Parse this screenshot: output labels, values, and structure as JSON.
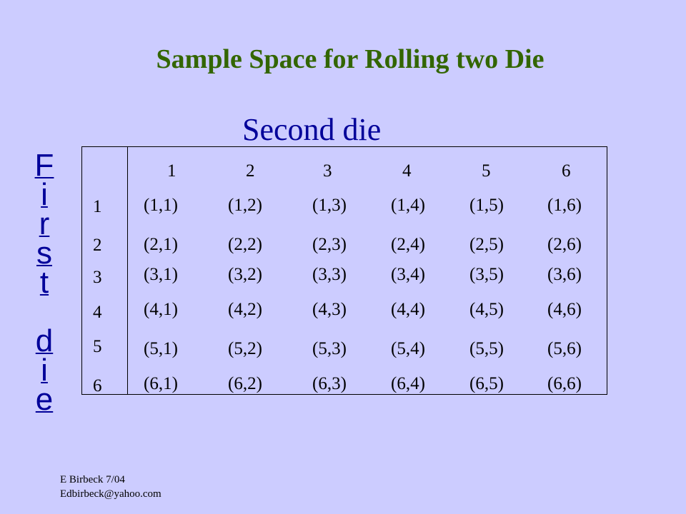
{
  "title": "Sample Space for Rolling two Die",
  "column_label": "Second die",
  "row_label_letters": [
    "F",
    "i",
    "r",
    "s",
    "t",
    "",
    "d",
    "i",
    "e"
  ],
  "column_headers": [
    "1",
    "2",
    "3",
    "4",
    "5",
    "6"
  ],
  "row_headers": [
    "1",
    "2",
    "3",
    "4",
    "5",
    "6"
  ],
  "outcomes": [
    [
      "(1,1)",
      "(1,2)",
      "(1,3)",
      "(1,4)",
      "(1,5)",
      "(1,6)"
    ],
    [
      "(2,1)",
      "(2,2)",
      "(2,3)",
      "(2,4)",
      "(2,5)",
      "(2,6)"
    ],
    [
      "(3,1)",
      "(3,2)",
      "(3,3)",
      "(3,4)",
      "(3,5)",
      "(3,6)"
    ],
    [
      "(4,1)",
      "(4,2)",
      "(4,3)",
      "(4,4)",
      "(4,5)",
      "(4,6)"
    ],
    [
      "(5,1)",
      "(5,2)",
      "(5,3)",
      "(5,4)",
      "(5,5)",
      "(5,6)"
    ],
    [
      "(6,1)",
      "(6,2)",
      "(6,3)",
      "(6,4)",
      "(6,5)",
      "(6,6)"
    ]
  ],
  "footer": {
    "author_line": "E Birbeck 7/04",
    "email": "Edbirbeck@yahoo.com"
  },
  "colors": {
    "background": "#ccccff",
    "title": "#336600",
    "labels": "#000099",
    "table_text": "#000000"
  }
}
